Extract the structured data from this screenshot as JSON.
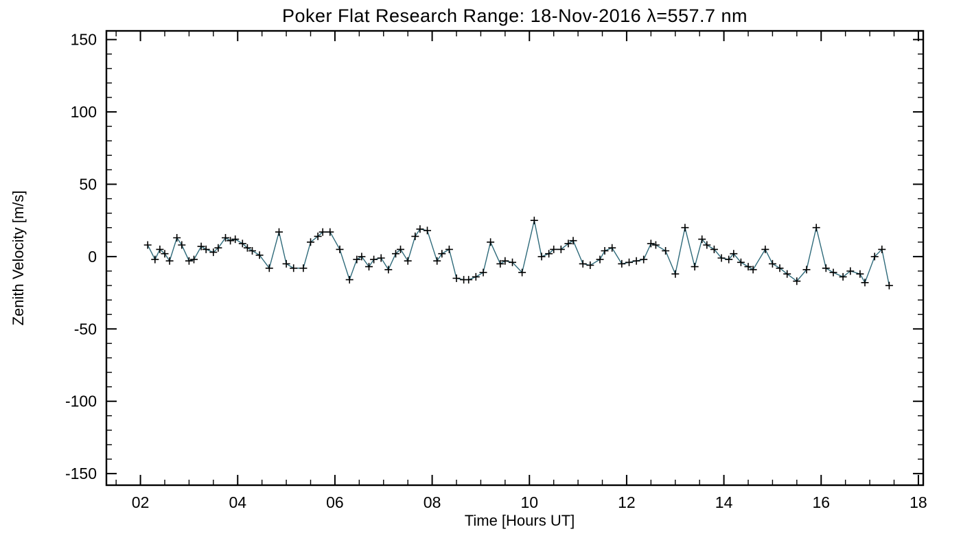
{
  "figure": {
    "background": "#ffffff",
    "frame_color": "#000000"
  },
  "chart_data": {
    "type": "line",
    "title": "Poker Flat Research Range: 18-Nov-2016 λ=557.7 nm",
    "xlabel": "Time [Hours UT]",
    "ylabel": "Zenith Velocity [m/s]",
    "xlim": [
      1.3,
      18.1
    ],
    "ylim": [
      -158,
      156
    ],
    "x_ticks": [
      {
        "v": 2,
        "label": "02"
      },
      {
        "v": 4,
        "label": "04"
      },
      {
        "v": 6,
        "label": "06"
      },
      {
        "v": 8,
        "label": "08"
      },
      {
        "v": 10,
        "label": "10"
      },
      {
        "v": 12,
        "label": "12"
      },
      {
        "v": 14,
        "label": "14"
      },
      {
        "v": 16,
        "label": "16"
      },
      {
        "v": 18,
        "label": "18"
      }
    ],
    "y_ticks": [
      {
        "v": -150,
        "label": "-150"
      },
      {
        "v": -100,
        "label": "-100"
      },
      {
        "v": -50,
        "label": "-50"
      },
      {
        "v": 0,
        "label": "0"
      },
      {
        "v": 50,
        "label": "50"
      },
      {
        "v": 100,
        "label": "100"
      },
      {
        "v": 150,
        "label": "150"
      }
    ],
    "x_minor_step": 0.5,
    "y_minor_step": 10,
    "grid": false,
    "legend": false,
    "line_color": "#2e6a7a",
    "marker_color": "#000000",
    "marker": "plus",
    "series": [
      {
        "name": "zenith-velocity",
        "x": [
          2.15,
          2.3,
          2.4,
          2.5,
          2.6,
          2.75,
          2.85,
          3.0,
          3.1,
          3.25,
          3.35,
          3.5,
          3.6,
          3.75,
          3.85,
          3.95,
          4.1,
          4.2,
          4.3,
          4.45,
          4.65,
          4.85,
          5.0,
          5.15,
          5.35,
          5.5,
          5.65,
          5.75,
          5.9,
          6.1,
          6.3,
          6.45,
          6.55,
          6.7,
          6.8,
          6.95,
          7.1,
          7.25,
          7.35,
          7.5,
          7.65,
          7.75,
          7.9,
          8.1,
          8.2,
          8.35,
          8.5,
          8.65,
          8.75,
          8.9,
          9.05,
          9.2,
          9.4,
          9.5,
          9.65,
          9.85,
          10.1,
          10.25,
          10.4,
          10.5,
          10.65,
          10.8,
          10.9,
          11.1,
          11.25,
          11.45,
          11.55,
          11.7,
          11.9,
          12.05,
          12.2,
          12.35,
          12.5,
          12.6,
          12.8,
          13.0,
          13.2,
          13.4,
          13.55,
          13.65,
          13.8,
          13.95,
          14.1,
          14.2,
          14.35,
          14.5,
          14.6,
          14.85,
          15.0,
          15.15,
          15.3,
          15.5,
          15.7,
          15.9,
          16.1,
          16.25,
          16.45,
          16.6,
          16.8,
          16.9,
          17.1,
          17.25,
          17.4
        ],
        "y": [
          8,
          -2,
          5,
          2,
          -3,
          13,
          8,
          -3,
          -2,
          7,
          5,
          3,
          6,
          13,
          11,
          12,
          9,
          6,
          4,
          1,
          -8,
          17,
          -5,
          -8,
          -8,
          10,
          14,
          17,
          17,
          5,
          -16,
          -2,
          0,
          -7,
          -2,
          -1,
          -9,
          2,
          5,
          -3,
          14,
          19,
          18,
          -3,
          2,
          5,
          -15,
          -16,
          -16,
          -14,
          -11,
          10,
          -5,
          -3,
          -4,
          -11,
          25,
          0,
          2,
          5,
          5,
          9,
          11,
          -5,
          -6,
          -2,
          4,
          6,
          -5,
          -4,
          -3,
          -2,
          9,
          8,
          4,
          -12,
          20,
          -7,
          12,
          8,
          5,
          -1,
          -2,
          2,
          -4,
          -7,
          -9,
          5,
          -5,
          -8,
          -12,
          -17,
          -9,
          20,
          -8,
          -11,
          -14,
          -10,
          -12,
          -18,
          0,
          5,
          -20
        ]
      }
    ]
  }
}
